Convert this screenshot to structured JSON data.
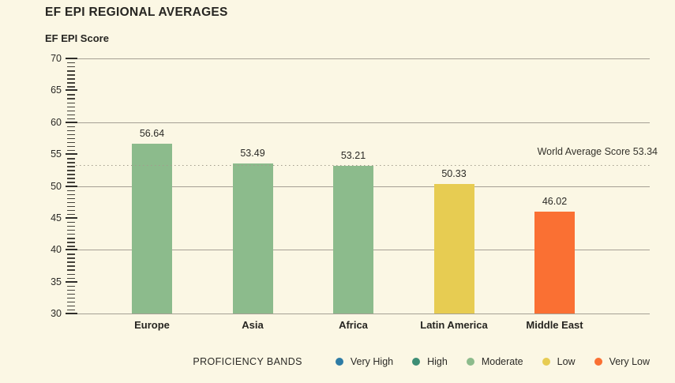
{
  "page": {
    "background": "#fbf7e4"
  },
  "chart_data": {
    "type": "bar",
    "title": "EF EPI REGIONAL AVERAGES",
    "ylabel": "EF EPI Score",
    "categories": [
      "Europe",
      "Asia",
      "Africa",
      "Latin America",
      "Middle East"
    ],
    "values": [
      56.64,
      53.49,
      53.21,
      50.33,
      46.02
    ],
    "value_labels": [
      "56.64",
      "53.49",
      "53.21",
      "50.33",
      "46.02"
    ],
    "bar_bands": [
      "Moderate",
      "Moderate",
      "Moderate",
      "Low",
      "Very Low"
    ],
    "band_colors": {
      "Very High": "#2e7ca5",
      "High": "#3d8e75",
      "Moderate": "#8cbb8c",
      "Low": "#e7cc52",
      "Very Low": "#fa7033"
    },
    "ylim": [
      30,
      70
    ],
    "ytick_labels": [
      "70",
      "65",
      "60",
      "55",
      "50",
      "45",
      "40",
      "35",
      "30"
    ],
    "gridline_values": [
      70,
      60,
      50,
      40,
      30
    ],
    "grid": "horizontal solid lines every 10 units; ruler-style minor ticks on y-axis",
    "reference_line": {
      "value": 53.34,
      "label": "World Average Score 53.34",
      "style": "dotted"
    },
    "legend": {
      "label": "PROFICIENCY BANDS",
      "position": "bottom",
      "items": [
        {
          "label": "Very High",
          "color": "#2e7ca5"
        },
        {
          "label": "High",
          "color": "#3d8e75"
        },
        {
          "label": "Moderate",
          "color": "#8cbb8c"
        },
        {
          "label": "Low",
          "color": "#e7cc52"
        },
        {
          "label": "Very Low",
          "color": "#fa7033"
        }
      ]
    }
  },
  "colors": {
    "background": "#fbf7e4",
    "text": "#262521",
    "gridline": "#a5a094",
    "reference_dotted": "#a29d8d",
    "tick": "#2f2d29"
  }
}
